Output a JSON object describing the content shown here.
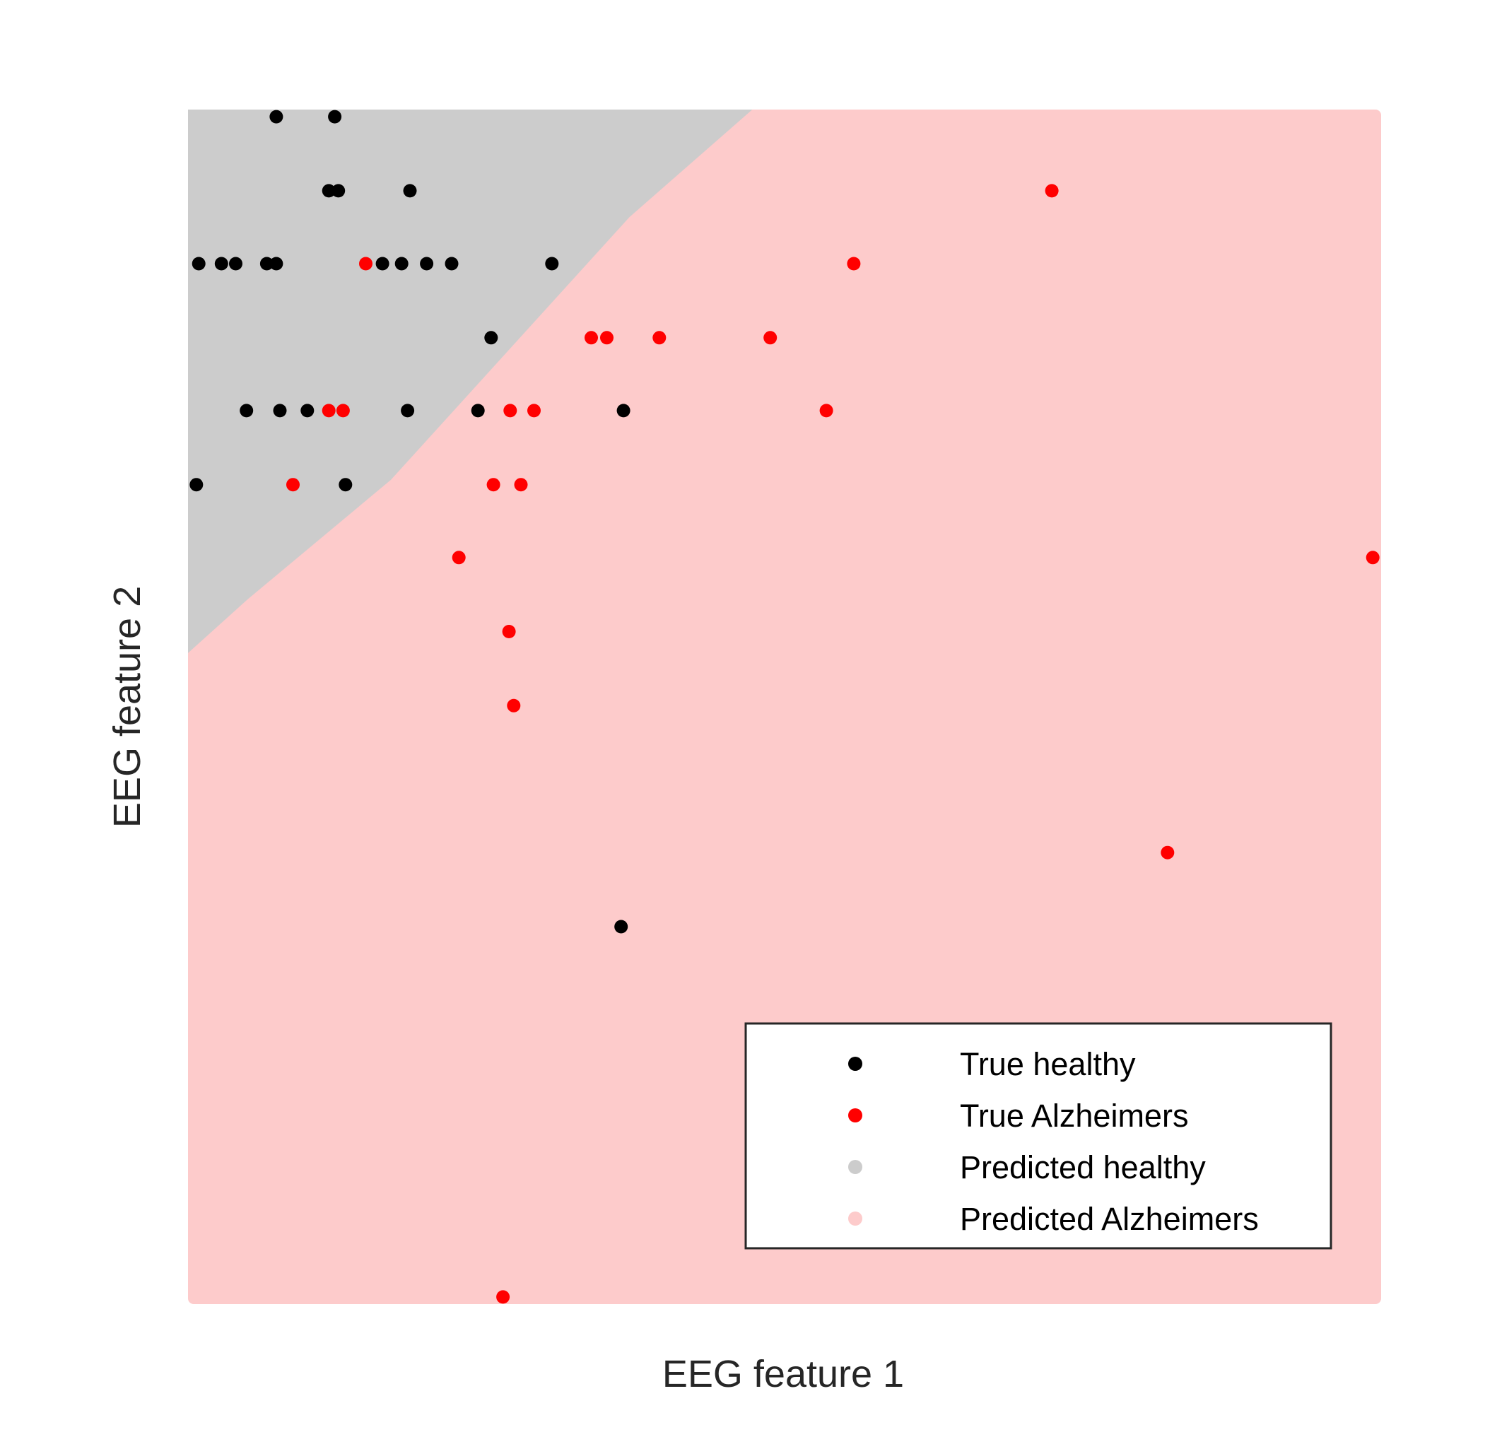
{
  "chart_data": {
    "type": "scatter",
    "title": "",
    "xlabel": "EEG feature 1",
    "ylabel": "EEG feature 2",
    "xlim": [
      0,
      100
    ],
    "ylim": [
      0,
      100
    ],
    "ticks_shown": false,
    "grid": false,
    "background_regions": [
      {
        "name": "Predicted healthy",
        "color": "#cccccc",
        "region": "above decision boundary (upper-left)",
        "boundary_polyline": [
          [
            0,
            54.5
          ],
          [
            5,
            59.0
          ],
          [
            17,
            69.0
          ],
          [
            27,
            80.0
          ],
          [
            37,
            91.0
          ],
          [
            47.3,
            100
          ]
        ]
      },
      {
        "name": "Predicted Alzheimers",
        "color": "#fdcbcb",
        "region": "below decision boundary (lower-right)"
      }
    ],
    "series": [
      {
        "name": "True healthy",
        "color": "#000000",
        "points": [
          [
            7.4,
            99.4
          ],
          [
            12.3,
            99.4
          ],
          [
            11.8,
            93.2
          ],
          [
            12.6,
            93.2
          ],
          [
            18.6,
            93.2
          ],
          [
            0.9,
            87.1
          ],
          [
            2.8,
            87.1
          ],
          [
            4.0,
            87.1
          ],
          [
            6.6,
            87.1
          ],
          [
            7.4,
            87.1
          ],
          [
            16.3,
            87.1
          ],
          [
            17.9,
            87.1
          ],
          [
            20.0,
            87.1
          ],
          [
            22.1,
            87.1
          ],
          [
            30.5,
            87.1
          ],
          [
            25.4,
            80.9
          ],
          [
            4.9,
            74.8
          ],
          [
            7.7,
            74.8
          ],
          [
            10.0,
            74.8
          ],
          [
            18.4,
            74.8
          ],
          [
            24.3,
            74.8
          ],
          [
            36.5,
            74.8
          ],
          [
            0.7,
            68.6
          ],
          [
            13.2,
            68.6
          ],
          [
            36.3,
            31.6
          ]
        ]
      },
      {
        "name": "True Alzheimers",
        "color": "#ff0000",
        "points": [
          [
            72.4,
            93.2
          ],
          [
            14.9,
            87.1
          ],
          [
            55.8,
            87.1
          ],
          [
            33.8,
            80.9
          ],
          [
            35.1,
            80.9
          ],
          [
            39.5,
            80.9
          ],
          [
            48.8,
            80.9
          ],
          [
            11.8,
            74.8
          ],
          [
            13.0,
            74.8
          ],
          [
            27.0,
            74.8
          ],
          [
            29.0,
            74.8
          ],
          [
            53.5,
            74.8
          ],
          [
            8.8,
            68.6
          ],
          [
            25.6,
            68.6
          ],
          [
            27.9,
            68.6
          ],
          [
            22.7,
            62.5
          ],
          [
            99.3,
            62.5
          ],
          [
            26.9,
            56.3
          ],
          [
            27.3,
            50.1
          ],
          [
            82.1,
            37.8
          ],
          [
            26.4,
            0.6
          ]
        ]
      }
    ],
    "legend": {
      "position": "lower-right",
      "entries": [
        {
          "label": "True healthy",
          "color": "#000000"
        },
        {
          "label": "True Alzheimers",
          "color": "#ff0000"
        },
        {
          "label": "Predicted healthy",
          "color": "#cccccc"
        },
        {
          "label": "Predicted Alzheimers",
          "color": "#fdcbcb"
        }
      ]
    }
  }
}
